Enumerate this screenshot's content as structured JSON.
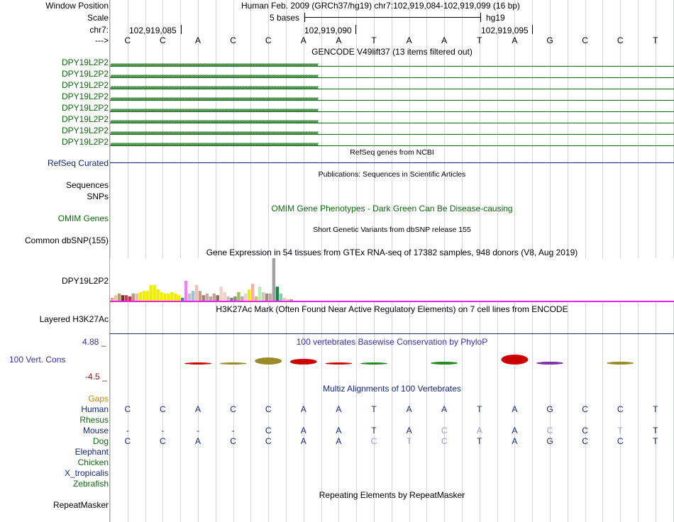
{
  "ruler": {
    "window_label": "Window Position",
    "window_text": "Human Feb. 2009 (GRCh37/hg19)   chr7:102,919,084-102,919,099 (16 bp)",
    "scale_label": "Scale",
    "scale_text": "5 bases",
    "assembly": "hg19",
    "chr_label": "chr7:",
    "coords": [
      "102,919,085",
      "102,919,090",
      "102,919,095"
    ],
    "strand_label": "--->"
  },
  "bases": [
    "C",
    "C",
    "A",
    "C",
    "C",
    "A",
    "A",
    "T",
    "A",
    "A",
    "T",
    "A",
    "G",
    "C",
    "C",
    "T"
  ],
  "gencode": {
    "title": "GENCODE V49lift37 (13 items filtered out)",
    "items": [
      "DPY19L2P2",
      "DPY19L2P2",
      "DPY19L2P2",
      "DPY19L2P2",
      "DPY19L2P2",
      "DPY19L2P2",
      "DPY19L2P2",
      "DPY19L2P2"
    ],
    "color": "#0d6b0d"
  },
  "refseq": {
    "title": "RefSeq genes from NCBI",
    "label": "RefSeq Curated"
  },
  "pubs": {
    "title": "Publications: Sequences in Scientific Articles",
    "label_seq": "Sequences",
    "label_snps": "SNPs"
  },
  "omim": {
    "label": "OMIM Genes",
    "title": "OMIM Gene Phenotypes - Dark Green Can Be Disease-causing"
  },
  "dbsnp": {
    "title": "Short Genetic Variants from dbSNP release 155",
    "label": "Common dbSNP(155)"
  },
  "gtex": {
    "title": "Gene Expression in 54 tissues from GTEx RNA-seq of 17382 samples, 948 donors (V8, Aug 2019)",
    "label": "DPY19L2P2",
    "bars": [
      {
        "h": 0.07,
        "c": "#f0a07a"
      },
      {
        "h": 0.13,
        "c": "#e8c59a"
      },
      {
        "h": 0.17,
        "c": "#b8a06a"
      },
      {
        "h": 0.13,
        "c": "#7a2d47"
      },
      {
        "h": 0.13,
        "c": "#b24a4a"
      },
      {
        "h": 0.1,
        "c": "#e6194b"
      },
      {
        "h": 0.17,
        "c": "#a8a080"
      },
      {
        "h": 0.17,
        "c": "#e0c0a0"
      },
      {
        "h": 0.2,
        "c": "#eeee00"
      },
      {
        "h": 0.23,
        "c": "#eeee00"
      },
      {
        "h": 0.23,
        "c": "#eeee00"
      },
      {
        "h": 0.37,
        "c": "#eeee00"
      },
      {
        "h": 0.37,
        "c": "#eeee00"
      },
      {
        "h": 0.27,
        "c": "#eeee00"
      },
      {
        "h": 0.2,
        "c": "#eeee00"
      },
      {
        "h": 0.17,
        "c": "#eeee00"
      },
      {
        "h": 0.17,
        "c": "#eeee00"
      },
      {
        "h": 0.2,
        "c": "#eeee00"
      },
      {
        "h": 0.17,
        "c": "#eeee00"
      },
      {
        "h": 0.13,
        "c": "#eeee00"
      },
      {
        "h": 0.07,
        "c": "#3388cc"
      },
      {
        "h": 0.47,
        "c": "#ee82ee"
      },
      {
        "h": 0.17,
        "c": "#c0c0c0"
      },
      {
        "h": 0.23,
        "c": "#a0c0d0"
      },
      {
        "h": 0.37,
        "c": "#f0c0c0"
      },
      {
        "h": 0.23,
        "c": "#c0a080"
      },
      {
        "h": 0.13,
        "c": "#a08080"
      },
      {
        "h": 0.17,
        "c": "#c0b0a0"
      },
      {
        "h": 0.1,
        "c": "#c0a0a0"
      },
      {
        "h": 0.17,
        "c": "#c8a098"
      },
      {
        "h": 0.13,
        "c": "#8a6a5a"
      },
      {
        "h": 0.33,
        "c": "#f0d0c8"
      },
      {
        "h": 0.2,
        "c": "#f0d0c8"
      },
      {
        "h": 0.1,
        "c": "#c0c0c0"
      },
      {
        "h": 0.07,
        "c": "#808080"
      },
      {
        "h": 0.1,
        "c": "#8a8a8a"
      },
      {
        "h": 0.2,
        "c": "#a0c060"
      },
      {
        "h": 0.1,
        "c": "#c0a0c0"
      },
      {
        "h": 0.17,
        "c": "#f0d0c8"
      },
      {
        "h": 0.27,
        "c": "#eeee00"
      },
      {
        "h": 0.4,
        "c": "#f4b0b0"
      },
      {
        "h": 0.1,
        "c": "#d0c080"
      },
      {
        "h": 0.33,
        "c": "#b0f0b0"
      },
      {
        "h": 0.2,
        "c": "#d0c8c0"
      },
      {
        "h": 0.17,
        "c": "#a08a80"
      },
      {
        "h": 0.17,
        "c": "#c0a8a0"
      },
      {
        "h": 1.0,
        "c": "#a0a0a0"
      },
      {
        "h": 0.33,
        "c": "#118844"
      },
      {
        "h": 0.17,
        "c": "#88c8b0"
      },
      {
        "h": 0.07,
        "c": "#f0c0c8"
      },
      {
        "h": 0.03,
        "c": "#dddd55"
      },
      {
        "h": 0.03,
        "c": "#9999cc"
      }
    ]
  },
  "h3k27ac": {
    "title": "H3K27Ac Mark (Often Found Near Active Regulatory Elements) on 7 cell lines from ENCODE",
    "label": "Layered H3K27Ac"
  },
  "phylop": {
    "title": "100 vertebrates Basewise Conservation by PhyloP",
    "label": "100 Vert. Cons",
    "max": "4.88 _",
    "min": "-4.5 _"
  },
  "multiz": {
    "title": "Multiz Alignments of 100 Vertebrates",
    "gaps_label": "Gaps",
    "species": [
      {
        "name": "Human",
        "bases": [
          "C",
          "C",
          "A",
          "C",
          "C",
          "A",
          "A",
          "T",
          "A",
          "A",
          "T",
          "A",
          "G",
          "C",
          "C",
          "T"
        ],
        "light": []
      },
      {
        "name": "Rhesus",
        "bases": [],
        "light": []
      },
      {
        "name": "Mouse",
        "bases": [
          "-",
          "-",
          "-",
          "-",
          "C",
          "A",
          "A",
          "T",
          "A",
          "C",
          "A",
          "A",
          "C",
          "C",
          "T",
          "T"
        ],
        "light": [
          9,
          10,
          12,
          14
        ]
      },
      {
        "name": "Dog",
        "bases": [
          "C",
          "C",
          "A",
          "C",
          "C",
          "A",
          "A",
          "C",
          "T",
          "C",
          "T",
          "A",
          "G",
          "C",
          "C",
          "T"
        ],
        "light": [
          7,
          8,
          9
        ]
      },
      {
        "name": "Elephant",
        "bases": [],
        "light": []
      },
      {
        "name": "Chicken",
        "bases": [],
        "light": []
      },
      {
        "name": "X_tropicalis",
        "bases": [],
        "light": []
      },
      {
        "name": "Zebrafish",
        "bases": [],
        "light": []
      }
    ]
  },
  "repeatmasker": {
    "title": "Repeating Elements by RepeatMasker",
    "label": "RepeatMasker"
  },
  "colors": {
    "gencode_green": "#0d6b0d",
    "refseq_navy": "#14287a",
    "phylop_blue": "#3333aa",
    "gaps_orange": "#d08a00",
    "h3k27ac_magenta": "#ee22ee"
  }
}
